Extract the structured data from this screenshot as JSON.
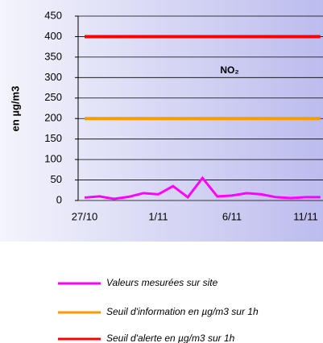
{
  "chart_data": {
    "type": "line",
    "title": "NO₂",
    "y_label": "en µg/m3",
    "categories": [
      "27/10",
      null,
      null,
      null,
      null,
      "1/11",
      null,
      null,
      null,
      null,
      "6/11",
      null,
      null,
      null,
      null,
      "11/11",
      null
    ],
    "series": [
      {
        "name": "Valeurs mesurées sur site",
        "color": "#ff00ff",
        "values": [
          7,
          10,
          4,
          9,
          18,
          15,
          35,
          8,
          55,
          10,
          12,
          18,
          15,
          8,
          6,
          8,
          8
        ]
      },
      {
        "name": "Seuil d'information en µg/m3 sur 1h",
        "color": "#ff9900",
        "values": [
          200,
          200,
          200,
          200,
          200,
          200,
          200,
          200,
          200,
          200,
          200,
          200,
          200,
          200,
          200,
          200,
          200
        ]
      },
      {
        "name": "Seuil d'alerte en µg/m3 sur 1h",
        "color": "#ff0000",
        "values": [
          400,
          400,
          400,
          400,
          400,
          400,
          400,
          400,
          400,
          400,
          400,
          400,
          400,
          400,
          400,
          400,
          400
        ]
      }
    ],
    "ylim": [
      0,
      450
    ],
    "yticks": [
      0,
      50,
      100,
      150,
      200,
      250,
      300,
      350,
      400,
      450
    ],
    "grid": true
  }
}
